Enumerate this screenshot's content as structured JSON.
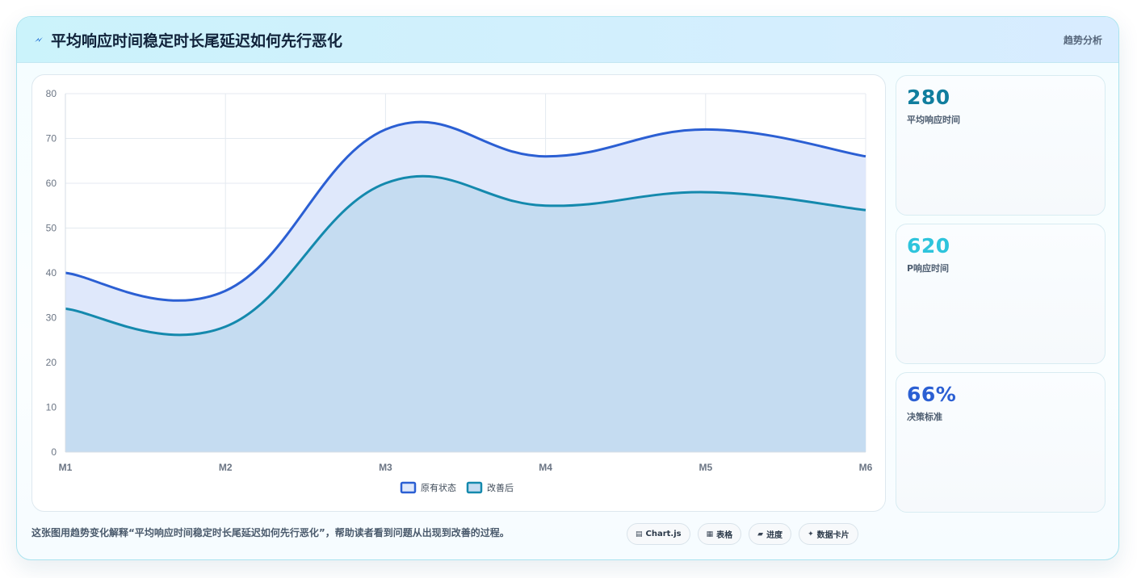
{
  "header": {
    "title": "平均响应时间稳定时长尾延迟如何先行恶化",
    "tag": "趋势分析",
    "icon": "lightning-icon"
  },
  "chart_data": {
    "type": "area",
    "categories": [
      "M1",
      "M2",
      "M3",
      "M4",
      "M5",
      "M6"
    ],
    "series": [
      {
        "name": "原有状态",
        "values": [
          40,
          36,
          72,
          66,
          72,
          66
        ],
        "color": "#2b5fd3",
        "fill": "#dfe8fb"
      },
      {
        "name": "改善后",
        "values": [
          32,
          28,
          60,
          55,
          58,
          54
        ],
        "color": "#1489ad",
        "fill": "#c5dcf1"
      }
    ],
    "ylim": [
      0,
      80
    ],
    "yticks": [
      0,
      10,
      20,
      30,
      40,
      50,
      60,
      70,
      80
    ],
    "grid": true,
    "legend": "bottom"
  },
  "stats": [
    {
      "value": "280",
      "label": "平均响应时间",
      "color": "#117e9e"
    },
    {
      "value": "620",
      "label": "P响应时间",
      "color": "#2ec4dc"
    },
    {
      "value": "66%",
      "label": "决策标准",
      "color": "#2b5fd3"
    }
  ],
  "footnote": "这张图用趋势变化解释“平均响应时间稳定时长尾延迟如何先行恶化”，帮助读者看到问题从出现到改善的过程。",
  "pills": [
    {
      "icon": "▤",
      "label": "Chart.js"
    },
    {
      "icon": "▦",
      "label": "表格"
    },
    {
      "icon": "▰",
      "label": "进度"
    },
    {
      "icon": "✦",
      "label": "数据卡片"
    }
  ]
}
